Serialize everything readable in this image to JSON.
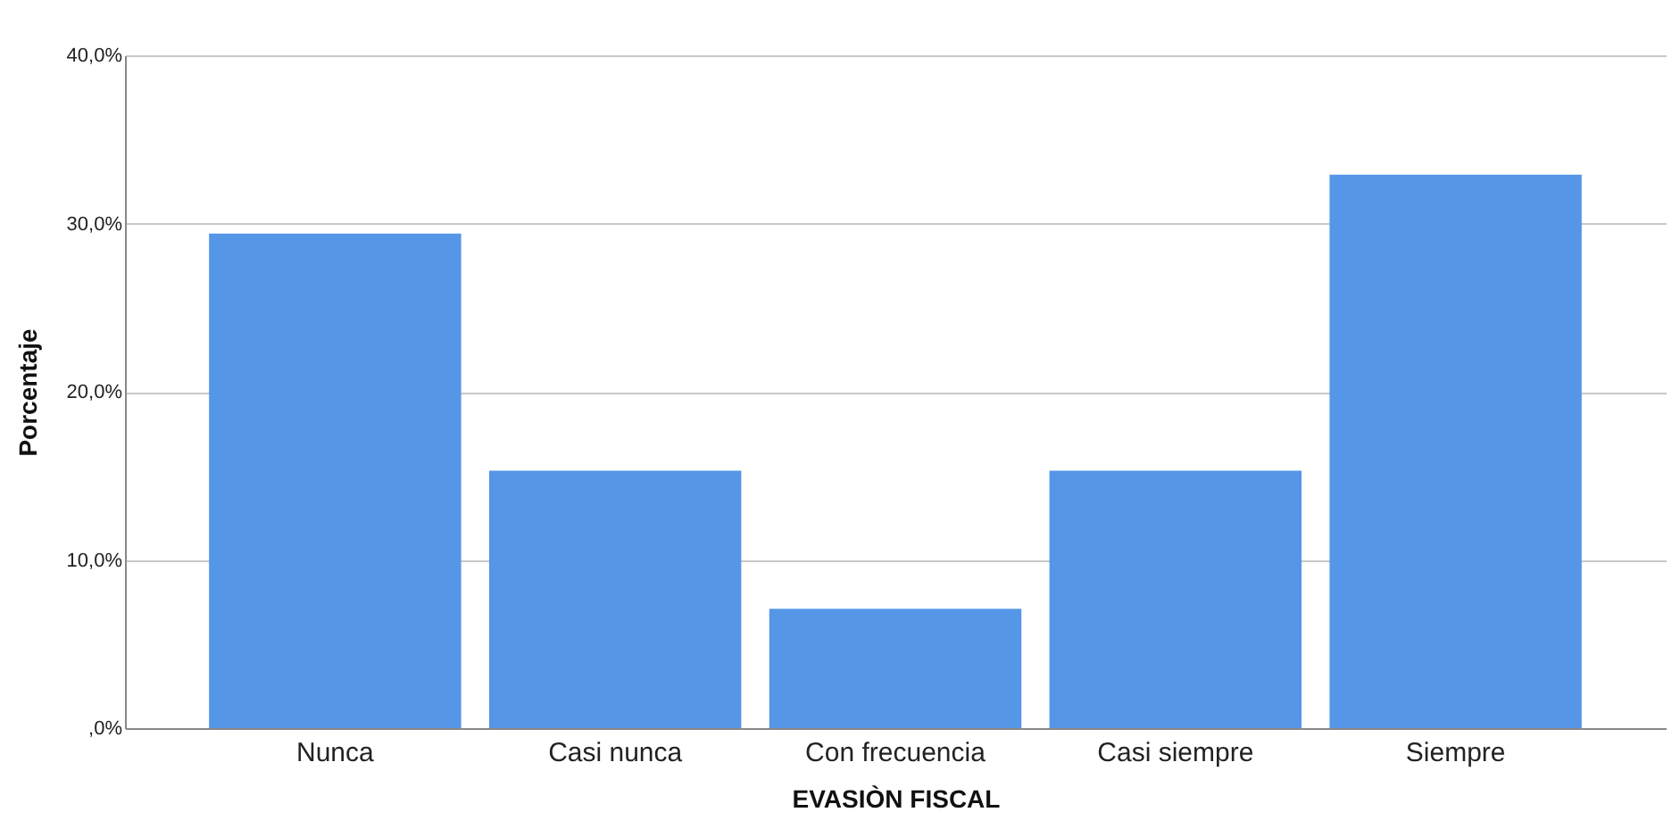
{
  "chart_data": {
    "type": "bar",
    "xlabel": "EVASIÒN FISCAL",
    "ylabel": "Porcentaje",
    "categories": [
      "Nunca",
      "Casi nunca",
      "Con frecuencia",
      "Casi siempre",
      "Siempre"
    ],
    "values": [
      29.4,
      15.3,
      7.1,
      15.3,
      32.9
    ],
    "color": "#5596e6",
    "ylim": [
      0,
      40
    ],
    "yticks": [
      {
        "value": 0,
        "label": ",0%"
      },
      {
        "value": 10,
        "label": "10,0%"
      },
      {
        "value": 20,
        "label": "20,0%"
      },
      {
        "value": 30,
        "label": "30,0%"
      },
      {
        "value": 40,
        "label": "40,0%"
      }
    ],
    "grid": "y"
  }
}
